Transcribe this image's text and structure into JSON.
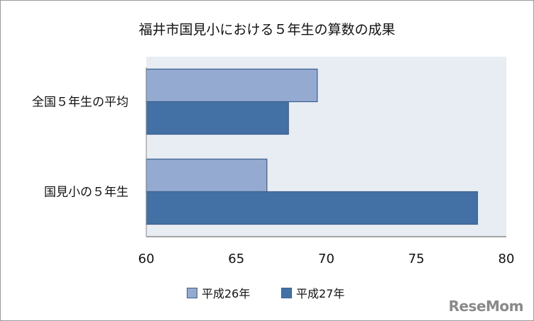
{
  "chart_data": {
    "type": "bar",
    "orientation": "horizontal",
    "title": "福井市国見小における５年生の算数の成果",
    "categories": [
      "全国５年生の平均",
      "国見小の５年生"
    ],
    "series": [
      {
        "name": "平成26年",
        "values": [
          69.5,
          66.7
        ],
        "color": "#95aad1"
      },
      {
        "name": "平成27年",
        "values": [
          67.9,
          78.4
        ],
        "color": "#4471a5"
      }
    ],
    "xlim": [
      60,
      80
    ],
    "xticks": [
      60,
      65,
      70,
      75,
      80
    ],
    "grid": false,
    "legend": "bottom",
    "plot_background": "#e8edf4"
  },
  "watermark": "ReseMom"
}
